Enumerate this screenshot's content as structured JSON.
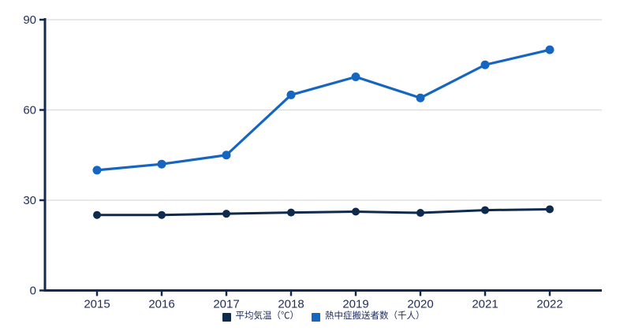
{
  "chart_data": {
    "type": "line",
    "categories": [
      "2015",
      "2016",
      "2017",
      "2018",
      "2019",
      "2020",
      "2021",
      "2022"
    ],
    "series": [
      {
        "name": "平均気温（℃）",
        "values": [
          25.1,
          25.1,
          25.5,
          25.9,
          26.2,
          25.8,
          26.7,
          27.0
        ],
        "color": "#0e2a4d",
        "marker_radius": 5,
        "line_width": 3
      },
      {
        "name": "熱中症搬送者数（千人）",
        "values": [
          40,
          42,
          45,
          65,
          71,
          64,
          75,
          80
        ],
        "color": "#1565c1",
        "marker_radius": 5.5,
        "line_width": 3.2
      }
    ],
    "title": "",
    "xlabel": "",
    "ylabel": "",
    "ylim": [
      0,
      90
    ],
    "yticks": [
      0,
      30,
      60,
      90
    ],
    "grid": true,
    "legend_position": "bottom",
    "colors": {
      "axis": "#15294f",
      "tick_text": "#1f2c5c",
      "gridline": "#d9d9d9",
      "background": "#ffffff"
    }
  }
}
